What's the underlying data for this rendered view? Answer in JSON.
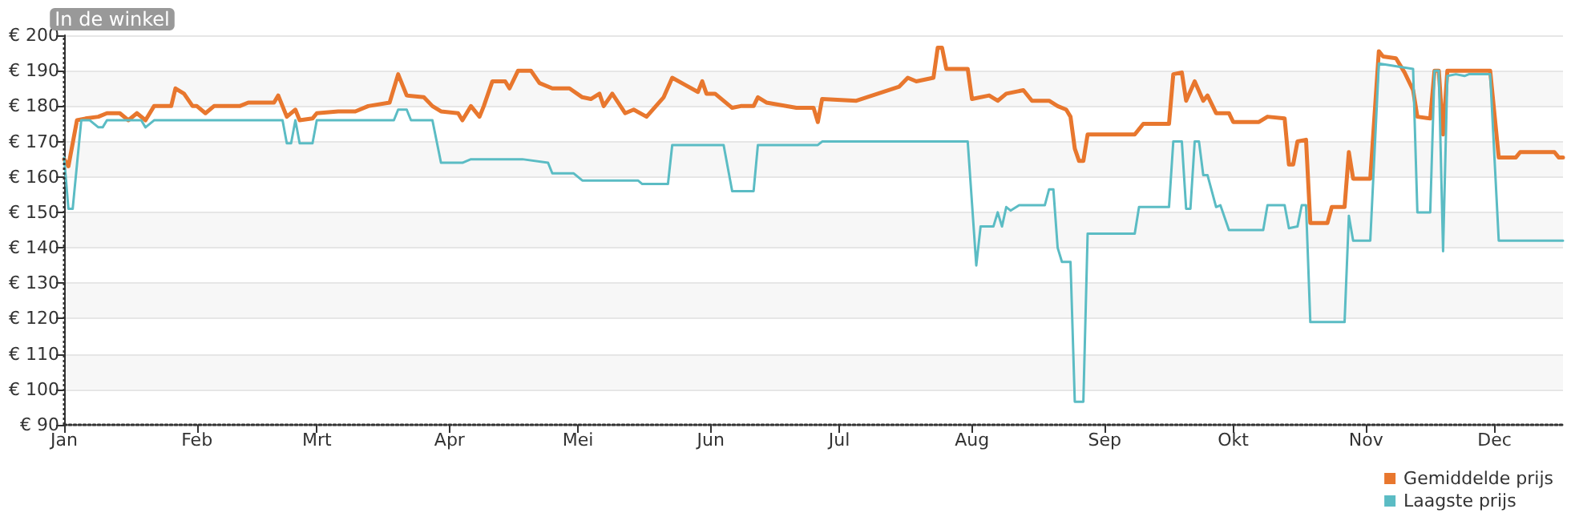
{
  "chart_data": {
    "type": "line",
    "series": [
      {
        "name": "Gemiddelde prijs",
        "color": "#e8772e",
        "x": [
          "--01-01",
          "--01-02",
          "--01-04",
          "--01-06",
          "--01-09",
          "--01-11",
          "--01-14",
          "--01-16",
          "--01-18",
          "--01-20",
          "--01-22",
          "--01-26",
          "--01-27",
          "--01-29",
          "--01-31",
          "--02-01",
          "--02-03",
          "--02-05",
          "--02-11",
          "--02-13",
          "--02-19",
          "--02-20",
          "--02-22",
          "--02-24",
          "--02-25",
          "--02-28",
          "--03-01",
          "--03-06",
          "--03-10",
          "--03-13",
          "--03-18",
          "--03-20",
          "--03-22",
          "--03-26",
          "--03-28",
          "--03-30",
          "--04-03",
          "--04-04",
          "--04-06",
          "--04-08",
          "--04-09",
          "--04-11",
          "--04-14",
          "--04-15",
          "--04-17",
          "--04-20",
          "--04-22",
          "--04-25",
          "--04-29",
          "--05-02",
          "--05-04",
          "--05-06",
          "--05-07",
          "--05-09",
          "--05-12",
          "--05-14",
          "--05-17",
          "--05-21",
          "--05-23",
          "--05-26",
          "--05-29",
          "--05-30",
          "--05-31",
          "--06-02",
          "--06-06",
          "--06-08",
          "--06-11",
          "--06-12",
          "--06-14",
          "--06-21",
          "--06-25",
          "--06-26",
          "--06-27",
          "--07-05",
          "--07-10",
          "--07-15",
          "--07-17",
          "--07-19",
          "--07-23",
          "--07-24",
          "--07-25",
          "--07-26",
          "--07-31",
          "--08-01",
          "--08-05",
          "--08-07",
          "--08-09",
          "--08-13",
          "--08-15",
          "--08-19",
          "--08-21",
          "--08-23",
          "--08-24",
          "--08-25",
          "--08-26",
          "--08-27",
          "--08-28",
          "--09-08",
          "--09-10",
          "--09-16",
          "--09-17",
          "--09-19",
          "--09-20",
          "--09-22",
          "--09-24",
          "--09-25",
          "--09-27",
          "--09-30",
          "--10-01",
          "--10-07",
          "--10-09",
          "--10-13",
          "--10-14",
          "--10-15",
          "--10-16",
          "--10-18",
          "--10-19",
          "--10-23",
          "--10-24",
          "--10-27",
          "--10-28",
          "--10-29",
          "--11-02",
          "--11-04",
          "--11-05",
          "--11-08",
          "--11-10",
          "--11-12",
          "--11-13",
          "--11-16",
          "--11-17",
          "--11-18",
          "--11-19",
          "--11-20",
          "--11-30",
          "--12-02",
          "--12-06",
          "--12-07",
          "--12-15",
          "--12-16",
          "--12-17"
        ],
        "values": [
          165,
          163,
          176,
          176.5,
          177,
          178,
          178,
          176,
          178,
          176,
          180,
          180,
          185,
          183.5,
          180,
          180,
          178,
          180,
          180,
          181,
          181,
          183,
          177,
          179,
          176,
          176.5,
          178,
          178.5,
          178.5,
          180,
          181,
          189,
          183,
          182.5,
          180,
          178.5,
          178,
          176,
          180,
          177,
          180,
          187,
          187,
          185,
          190,
          190,
          186.5,
          185,
          185,
          182.5,
          182,
          183.5,
          180,
          183.5,
          178,
          179,
          177,
          182.5,
          188,
          186,
          184,
          187,
          183.5,
          183.5,
          179.5,
          180,
          180,
          182.5,
          181,
          179.5,
          179.5,
          175.5,
          182,
          181.5,
          183.5,
          185.5,
          188,
          187,
          188,
          196.5,
          196.5,
          190.5,
          190.5,
          182,
          183,
          181.5,
          183.5,
          184.5,
          181.5,
          181.5,
          180,
          179,
          177,
          168,
          164.5,
          164.5,
          172,
          172,
          175,
          175,
          189,
          189.5,
          181.5,
          187,
          181.5,
          183,
          178,
          178,
          175.5,
          175.5,
          177,
          176.5,
          163.5,
          163.5,
          170,
          170.5,
          147,
          147,
          151.5,
          151.5,
          167,
          159.5,
          159.5,
          195.5,
          194,
          193.5,
          189.5,
          184.5,
          177,
          176.5,
          190,
          190,
          172,
          190,
          190,
          165.5,
          165.5,
          167,
          167,
          165.5,
          165.5
        ]
      },
      {
        "name": "Laagste prijs",
        "color": "#5bbcc4",
        "x": [
          "--01-01",
          "--01-02",
          "--01-03",
          "--01-05",
          "--01-07",
          "--01-09",
          "--01-10",
          "--01-11",
          "--01-19",
          "--01-20",
          "--01-22",
          "--02-21",
          "--02-22",
          "--02-23",
          "--02-24",
          "--02-25",
          "--02-28",
          "--03-01",
          "--03-19",
          "--03-20",
          "--03-22",
          "--03-23",
          "--03-28",
          "--03-30",
          "--04-04",
          "--04-06",
          "--04-18",
          "--04-24",
          "--04-25",
          "--04-30",
          "--05-02",
          "--05-15",
          "--05-16",
          "--05-22",
          "--05-23",
          "--06-04",
          "--06-06",
          "--06-11",
          "--06-12",
          "--06-26",
          "--06-27",
          "--07-31",
          "--08-02",
          "--08-03",
          "--08-06",
          "--08-07",
          "--08-08",
          "--08-09",
          "--08-10",
          "--08-12",
          "--08-18",
          "--08-19",
          "--08-20",
          "--08-21",
          "--08-22",
          "--08-24",
          "--08-25",
          "--08-27",
          "--08-28",
          "--09-08",
          "--09-09",
          "--09-16",
          "--09-17",
          "--09-19",
          "--09-20",
          "--09-21",
          "--09-22",
          "--09-23",
          "--09-24",
          "--09-25",
          "--09-27",
          "--09-28",
          "--09-30",
          "--10-08",
          "--10-09",
          "--10-13",
          "--10-14",
          "--10-16",
          "--10-17",
          "--10-18",
          "--10-19",
          "--10-27",
          "--10-28",
          "--10-29",
          "--11-02",
          "--11-04",
          "--11-12",
          "--11-13",
          "--11-16",
          "--11-17",
          "--11-18",
          "--11-19",
          "--11-20",
          "--11-22",
          "--11-24",
          "--11-25",
          "--11-30",
          "--12-02",
          "--12-17"
        ],
        "values": [
          165.5,
          151,
          151,
          176,
          176,
          174,
          174,
          176,
          176,
          174,
          176,
          176,
          169.5,
          169.5,
          176,
          169.5,
          169.5,
          176,
          176,
          179,
          179,
          176,
          176,
          164,
          164,
          165,
          165,
          164,
          161,
          161,
          159,
          159,
          158,
          158,
          169,
          169,
          156,
          156,
          169,
          169,
          170,
          170,
          135,
          146,
          146,
          150,
          146,
          151.5,
          150.5,
          152,
          152,
          156.5,
          156.5,
          140,
          136,
          136,
          96.5,
          96.5,
          144,
          144,
          151.5,
          151.5,
          170,
          170,
          151,
          151,
          170,
          170,
          160.5,
          160.5,
          151.5,
          152,
          145,
          145,
          152,
          152,
          145.5,
          146,
          152,
          152,
          119,
          119,
          149,
          142,
          142,
          192,
          190.5,
          150,
          150,
          190,
          190,
          139,
          188.5,
          189,
          188.5,
          189,
          189,
          142,
          142
        ]
      }
    ],
    "xlim": [
      "--01-01",
      "--12-17"
    ],
    "xticks": [
      {
        "value": "--01-01",
        "label": "Jan"
      },
      {
        "value": "--02-01",
        "label": "Feb"
      },
      {
        "value": "--03-01",
        "label": "Mrt"
      },
      {
        "value": "--04-01",
        "label": "Apr"
      },
      {
        "value": "--05-01",
        "label": "Mei"
      },
      {
        "value": "--06-01",
        "label": "Jun"
      },
      {
        "value": "--07-01",
        "label": "Jul"
      },
      {
        "value": "--08-01",
        "label": "Aug"
      },
      {
        "value": "--09-01",
        "label": "Sep"
      },
      {
        "value": "--10-01",
        "label": "Okt"
      },
      {
        "value": "--11-01",
        "label": "Nov"
      },
      {
        "value": "--12-01",
        "label": "Dec"
      }
    ],
    "ylim": [
      90,
      200
    ],
    "yticks": [
      {
        "value": 90,
        "label": "€ 90"
      },
      {
        "value": 100,
        "label": "€ 100"
      },
      {
        "value": 110,
        "label": "€ 110"
      },
      {
        "value": 120,
        "label": "€ 120"
      },
      {
        "value": 130,
        "label": "€ 130"
      },
      {
        "value": 140,
        "label": "€ 140"
      },
      {
        "value": 150,
        "label": "€ 150"
      },
      {
        "value": 160,
        "label": "€ 160"
      },
      {
        "value": 170,
        "label": "€ 170"
      },
      {
        "value": 180,
        "label": "€ 180"
      },
      {
        "value": 190,
        "label": "€ 190"
      },
      {
        "value": 200,
        "label": "€ 200"
      }
    ],
    "ref_lines": [
      {
        "axis": "x",
        "value": "--01-01",
        "label": "In de winkel",
        "color": "#333333",
        "line_style": "dotted"
      }
    ],
    "grid": "y",
    "legend": "bottom right",
    "marker": "none",
    "line_style": "solid"
  }
}
